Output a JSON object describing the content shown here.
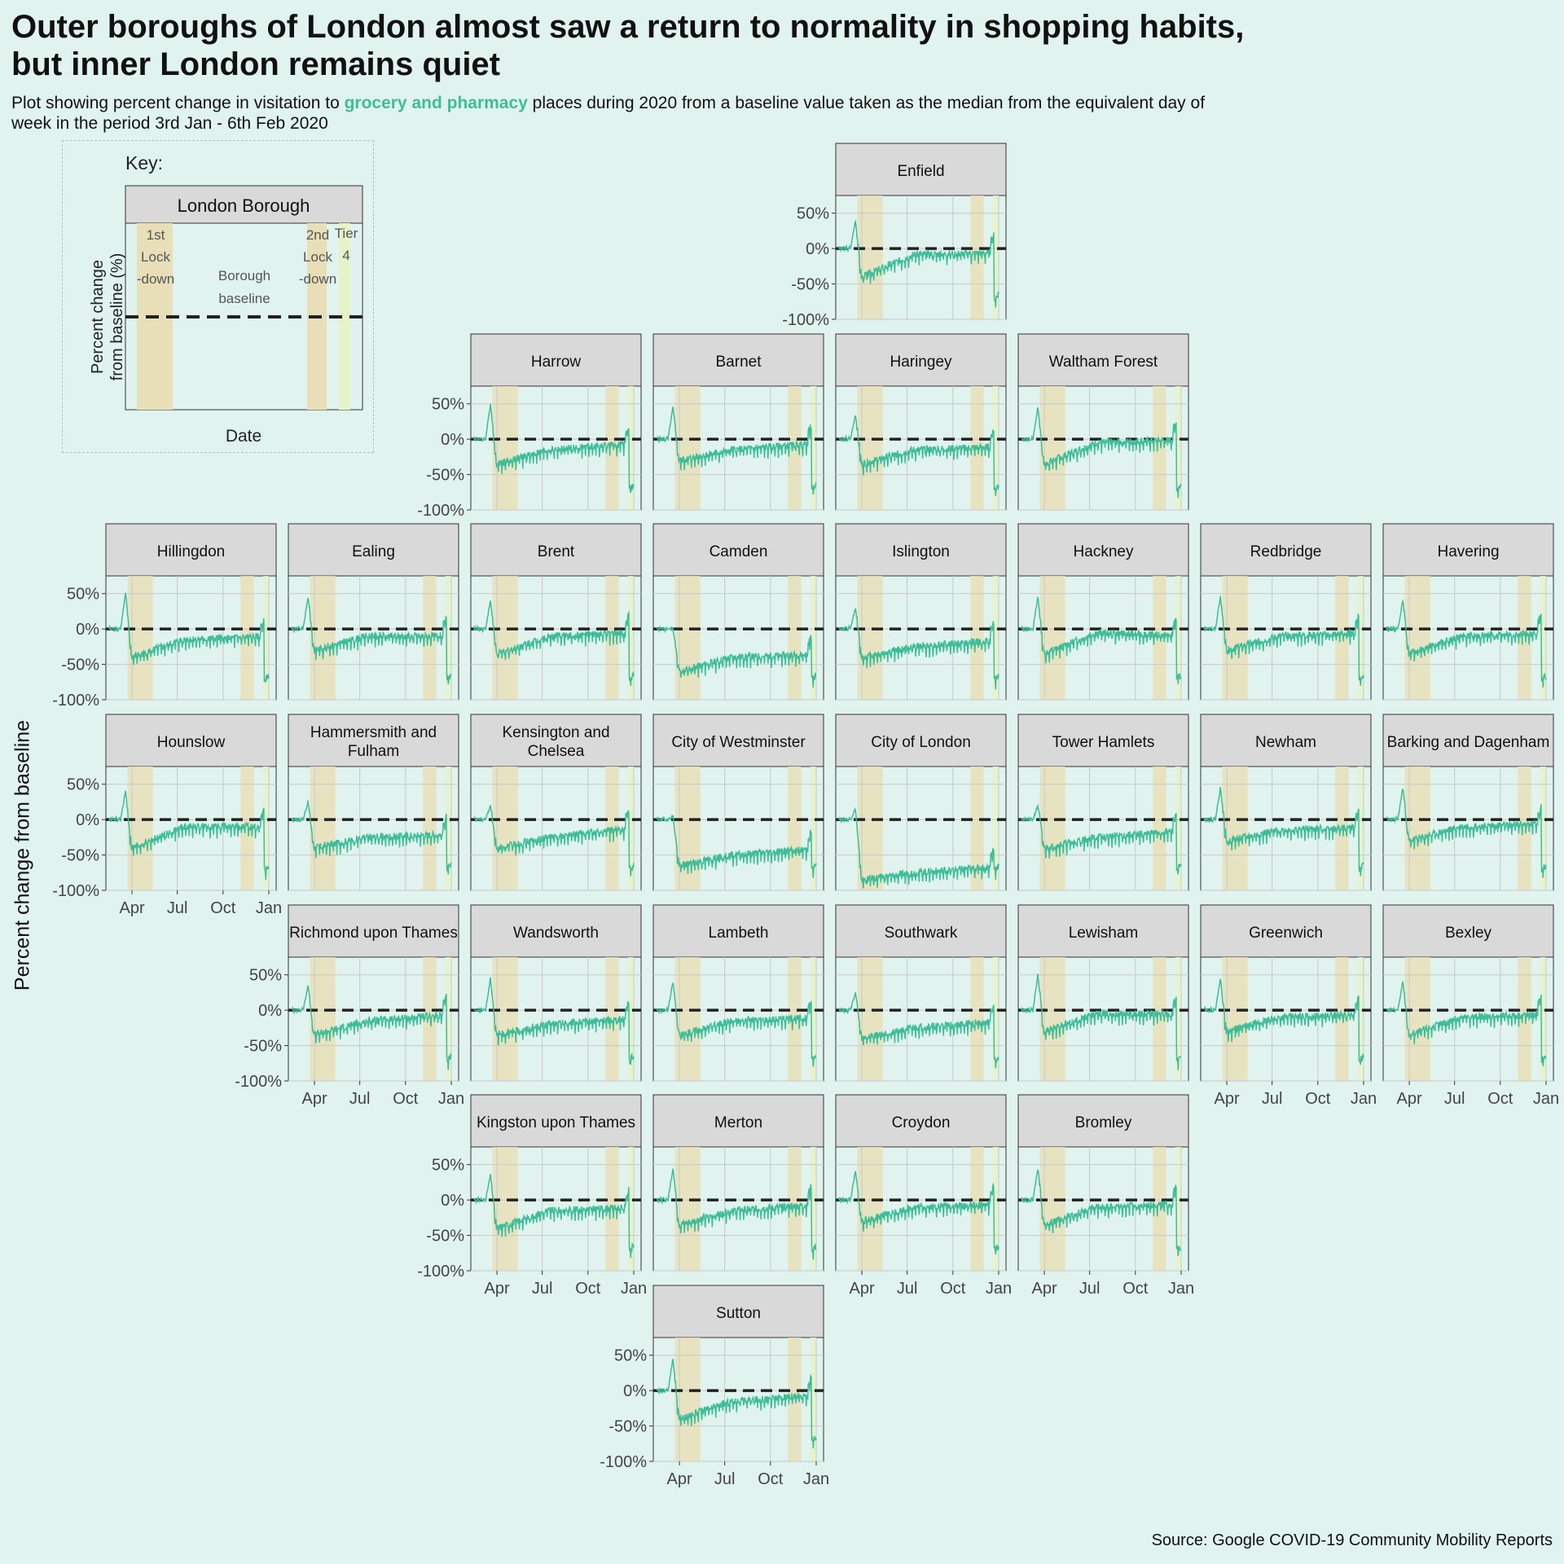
{
  "page": {
    "title": "Outer boroughs of London almost saw a return to normality in shopping habits,\n but inner London remains quiet",
    "subtitle_pre": "Plot showing percent change in visitation to ",
    "subtitle_highlight": "grocery and pharmacy",
    "subtitle_post": " places during 2020 from a baseline value taken as the median from the equivalent day of week in the period 3rd Jan - 6th Feb 2020",
    "y_axis_label": "Percent change from baseline",
    "source": "Source: Google COVID-19 Community Mobility Reports"
  },
  "key": {
    "title": "Key:",
    "panel_label": "London Borough",
    "x_label": "Date",
    "y_label_line1": "Percent change",
    "y_label_line2": "from baseline (%)",
    "baseline_label": [
      "Borough",
      "baseline"
    ],
    "lockdown1_label": [
      "1st",
      "Lock",
      "-down"
    ],
    "lockdown2_label": [
      "2nd",
      "Lock",
      "-down"
    ],
    "tier4_label": [
      "Tier",
      "4"
    ]
  },
  "colors": {
    "background": "#e0f3ef",
    "line": "#3dbd98",
    "panel_strip": "#d9d9d9",
    "lockdown_band": "#e8dfb8",
    "tier4_band": "#e6f2c8",
    "baseline": "#222222",
    "grid": "#c8c8c8"
  },
  "chart_data": {
    "type": "line",
    "layout": "small multiples (map grid of London boroughs)",
    "x_ticks": [
      "Apr",
      "Jul",
      "Oct",
      "Jan"
    ],
    "x_range": [
      "2020-02-15",
      "2021-01-01"
    ],
    "y_ticks": [
      "50%",
      "0%",
      "-50%",
      "-100%"
    ],
    "ylim": [
      -100,
      75
    ],
    "baseline": 0,
    "bands": [
      {
        "label": "1st Lockdown",
        "start": "2020-03-23",
        "end": "2020-05-13"
      },
      {
        "label": "2nd Lockdown",
        "start": "2020-11-05",
        "end": "2020-12-02"
      },
      {
        "label": "Tier 4",
        "start": "2020-12-20",
        "end": "2021-01-01"
      }
    ],
    "series_keypoints_note": "Approximate weekly-resolution trend per borough, in percent change; visible series drawn with added day-of-week noise",
    "panels": [
      {
        "name": "Enfield",
        "row": 0,
        "col": 4,
        "peak": 40,
        "early": -40,
        "mid": -8,
        "late": -5
      },
      {
        "name": "Harrow",
        "row": 1,
        "col": 2,
        "peak": 50,
        "early": -35,
        "mid": -15,
        "late": -5
      },
      {
        "name": "Barnet",
        "row": 1,
        "col": 3,
        "peak": 45,
        "early": -30,
        "mid": -15,
        "late": -5
      },
      {
        "name": "Haringey",
        "row": 1,
        "col": 4,
        "peak": 35,
        "early": -35,
        "mid": -15,
        "late": -10
      },
      {
        "name": "Waltham Forest",
        "row": 1,
        "col": 5,
        "peak": 45,
        "early": -35,
        "mid": -5,
        "late": 0
      },
      {
        "name": "Hillingdon",
        "row": 2,
        "col": 0,
        "peak": 50,
        "early": -40,
        "mid": -15,
        "late": -10
      },
      {
        "name": "Ealing",
        "row": 2,
        "col": 1,
        "peak": 45,
        "early": -30,
        "mid": -10,
        "late": -10
      },
      {
        "name": "Brent",
        "row": 2,
        "col": 2,
        "peak": 40,
        "early": -35,
        "mid": -10,
        "late": -5
      },
      {
        "name": "Camden",
        "row": 2,
        "col": 3,
        "peak": 0,
        "early": -60,
        "mid": -40,
        "late": -35
      },
      {
        "name": "Islington",
        "row": 2,
        "col": 4,
        "peak": 30,
        "early": -40,
        "mid": -25,
        "late": -15
      },
      {
        "name": "Hackney",
        "row": 2,
        "col": 5,
        "peak": 45,
        "early": -35,
        "mid": -5,
        "late": -10
      },
      {
        "name": "Redbridge",
        "row": 2,
        "col": 6,
        "peak": 45,
        "early": -30,
        "mid": -10,
        "late": -5
      },
      {
        "name": "Havering",
        "row": 2,
        "col": 7,
        "peak": 40,
        "early": -35,
        "mid": -10,
        "late": -5
      },
      {
        "name": "Hounslow",
        "row": 3,
        "col": 0,
        "peak": 40,
        "early": -40,
        "mid": -10,
        "late": -10
      },
      {
        "name": "Hammersmith and Fulham",
        "row": 3,
        "col": 1,
        "peak": 25,
        "early": -40,
        "mid": -25,
        "late": -20
      },
      {
        "name": "Kensington and Chelsea",
        "row": 3,
        "col": 2,
        "peak": 20,
        "early": -40,
        "mid": -25,
        "late": -10
      },
      {
        "name": "City of Westminster",
        "row": 3,
        "col": 3,
        "peak": 5,
        "early": -65,
        "mid": -50,
        "late": -40
      },
      {
        "name": "City of London",
        "row": 3,
        "col": 4,
        "peak": 15,
        "early": -85,
        "mid": -75,
        "late": -65
      },
      {
        "name": "Tower Hamlets",
        "row": 3,
        "col": 5,
        "peak": 20,
        "early": -40,
        "mid": -25,
        "late": -15
      },
      {
        "name": "Newham",
        "row": 3,
        "col": 6,
        "peak": 45,
        "early": -30,
        "mid": -15,
        "late": -10
      },
      {
        "name": "Barking and Dagenham",
        "row": 3,
        "col": 7,
        "peak": 45,
        "early": -30,
        "mid": -10,
        "late": -5
      },
      {
        "name": "Richmond upon Thames",
        "row": 4,
        "col": 1,
        "peak": 35,
        "early": -35,
        "mid": -15,
        "late": -5
      },
      {
        "name": "Wandsworth",
        "row": 4,
        "col": 2,
        "peak": 45,
        "early": -35,
        "mid": -20,
        "late": -10
      },
      {
        "name": "Lambeth",
        "row": 4,
        "col": 3,
        "peak": 40,
        "early": -35,
        "mid": -15,
        "late": -10
      },
      {
        "name": "Southwark",
        "row": 4,
        "col": 4,
        "peak": 25,
        "early": -40,
        "mid": -25,
        "late": -15
      },
      {
        "name": "Lewisham",
        "row": 4,
        "col": 5,
        "peak": 50,
        "early": -30,
        "mid": -5,
        "late": -5
      },
      {
        "name": "Greenwich",
        "row": 4,
        "col": 6,
        "peak": 45,
        "early": -30,
        "mid": -10,
        "late": -5
      },
      {
        "name": "Bexley",
        "row": 4,
        "col": 7,
        "peak": 40,
        "early": -35,
        "mid": -10,
        "late": -5
      },
      {
        "name": "Kingston upon Thames",
        "row": 5,
        "col": 2,
        "peak": 35,
        "early": -40,
        "mid": -15,
        "late": -10
      },
      {
        "name": "Merton",
        "row": 5,
        "col": 3,
        "peak": 45,
        "early": -35,
        "mid": -15,
        "late": -5
      },
      {
        "name": "Croydon",
        "row": 5,
        "col": 4,
        "peak": 40,
        "early": -30,
        "mid": -10,
        "late": -5
      },
      {
        "name": "Bromley",
        "row": 5,
        "col": 5,
        "peak": 45,
        "early": -35,
        "mid": -10,
        "late": -5
      },
      {
        "name": "Sutton",
        "row": 6,
        "col": 3,
        "peak": 45,
        "early": -40,
        "mid": -15,
        "late": -5
      }
    ]
  }
}
